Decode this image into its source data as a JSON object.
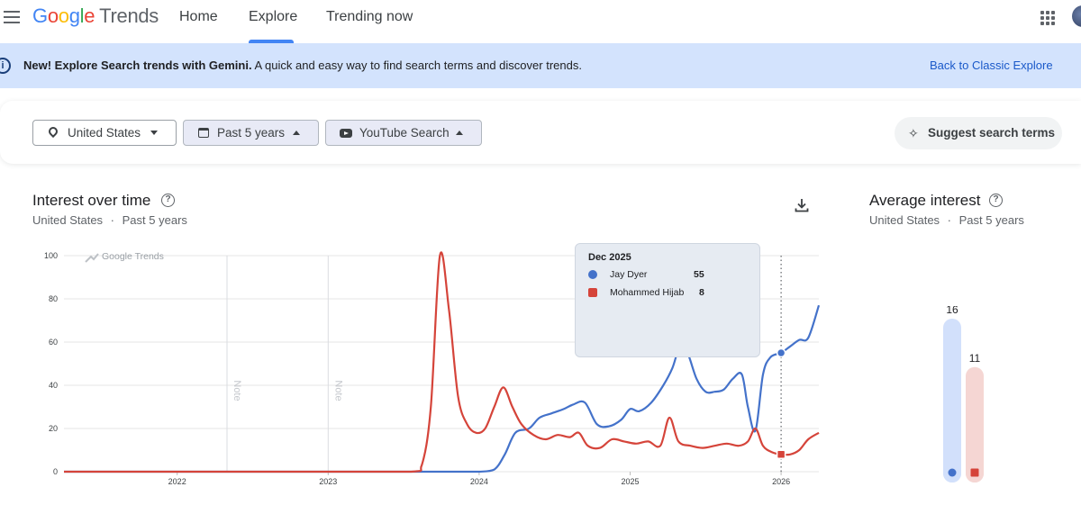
{
  "header": {
    "logo_letters": [
      "G",
      "o",
      "o",
      "g",
      "l",
      "e"
    ],
    "logo_suffix": "Trends",
    "nav": [
      {
        "label": "Home"
      },
      {
        "label": "Explore",
        "active": true
      },
      {
        "label": "Trending now"
      }
    ]
  },
  "banner": {
    "bold": "New! Explore Search trends with Gemini.",
    "text": "A quick and easy way to find search terms and discover trends.",
    "link": "Back to Classic Explore",
    "color": "#d3e3fd"
  },
  "filters": {
    "location": "United States",
    "time_range": "Past 5 years",
    "property": "YouTube Search",
    "suggest": "Suggest search terms"
  },
  "interest_over_time": {
    "title": "Interest over time",
    "location": "United States",
    "separator": "·",
    "time_range": "Past 5 years",
    "watermark": "Google Trends",
    "note_label": "Note"
  },
  "tooltip": {
    "date": "Dec 2025",
    "rows": [
      {
        "name": "Jay Dyer",
        "value": "55",
        "color": "#4472ca"
      },
      {
        "name": "Mohammed Hijab",
        "value": "8",
        "color": "#d5443a"
      }
    ]
  },
  "average_interest": {
    "title": "Average interest",
    "location": "United States",
    "separator": "·",
    "time_range": "Past 5 years",
    "bars": [
      {
        "name": "Jay Dyer",
        "value": 16,
        "label": "16",
        "color": "#4472ca",
        "track": "#d2e0fb"
      },
      {
        "name": "Mohammed Hijab",
        "value": 11,
        "label": "11",
        "color": "#d5443a",
        "track": "#f5d6d3"
      }
    ]
  },
  "chart_data": {
    "type": "line",
    "x_ticks": [
      "2022",
      "2023",
      "2024",
      "2025",
      "2026"
    ],
    "y_ticks": [
      "0",
      "20",
      "40",
      "60",
      "80",
      "100"
    ],
    "ylim": [
      0,
      100
    ],
    "xlim": [
      2021.25,
      2026.25
    ],
    "note_positions": [
      2022.33,
      2023.0
    ],
    "highlight_x": 2026.0,
    "series": [
      {
        "name": "Jay Dyer",
        "color": "#4472ca",
        "points": [
          [
            2021.25,
            0
          ],
          [
            2023.0,
            0
          ],
          [
            2023.6,
            0
          ],
          [
            2023.9,
            0
          ],
          [
            2024.0,
            0
          ],
          [
            2024.1,
            1
          ],
          [
            2024.17,
            8
          ],
          [
            2024.24,
            18
          ],
          [
            2024.33,
            20
          ],
          [
            2024.4,
            25
          ],
          [
            2024.48,
            27
          ],
          [
            2024.56,
            29
          ],
          [
            2024.62,
            31
          ],
          [
            2024.7,
            32
          ],
          [
            2024.78,
            22
          ],
          [
            2024.86,
            21
          ],
          [
            2024.94,
            24
          ],
          [
            2025.0,
            29
          ],
          [
            2025.06,
            28
          ],
          [
            2025.14,
            32
          ],
          [
            2025.22,
            40
          ],
          [
            2025.28,
            48
          ],
          [
            2025.33,
            58
          ],
          [
            2025.38,
            55
          ],
          [
            2025.44,
            43
          ],
          [
            2025.5,
            37
          ],
          [
            2025.56,
            37
          ],
          [
            2025.62,
            38
          ],
          [
            2025.68,
            43
          ],
          [
            2025.74,
            45
          ],
          [
            2025.78,
            30
          ],
          [
            2025.83,
            19
          ],
          [
            2025.88,
            45
          ],
          [
            2025.93,
            53
          ],
          [
            2026.0,
            55
          ],
          [
            2026.06,
            58
          ],
          [
            2026.12,
            61
          ],
          [
            2026.18,
            62
          ],
          [
            2026.25,
            77
          ]
        ]
      },
      {
        "name": "Mohammed Hijab",
        "color": "#d5443a",
        "points": [
          [
            2021.25,
            0
          ],
          [
            2023.0,
            0
          ],
          [
            2023.55,
            0
          ],
          [
            2023.62,
            3
          ],
          [
            2023.68,
            30
          ],
          [
            2023.74,
            100
          ],
          [
            2023.8,
            75
          ],
          [
            2023.86,
            35
          ],
          [
            2023.92,
            22
          ],
          [
            2023.98,
            18
          ],
          [
            2024.04,
            20
          ],
          [
            2024.1,
            30
          ],
          [
            2024.16,
            39
          ],
          [
            2024.22,
            30
          ],
          [
            2024.28,
            22
          ],
          [
            2024.36,
            17
          ],
          [
            2024.44,
            15
          ],
          [
            2024.52,
            17
          ],
          [
            2024.6,
            16
          ],
          [
            2024.66,
            18
          ],
          [
            2024.72,
            12
          ],
          [
            2024.8,
            11
          ],
          [
            2024.88,
            15
          ],
          [
            2024.96,
            14
          ],
          [
            2025.04,
            13
          ],
          [
            2025.12,
            14
          ],
          [
            2025.2,
            12
          ],
          [
            2025.26,
            25
          ],
          [
            2025.32,
            14
          ],
          [
            2025.4,
            12
          ],
          [
            2025.48,
            11
          ],
          [
            2025.56,
            12
          ],
          [
            2025.64,
            13
          ],
          [
            2025.72,
            12
          ],
          [
            2025.78,
            14
          ],
          [
            2025.83,
            20
          ],
          [
            2025.88,
            12
          ],
          [
            2025.94,
            9
          ],
          [
            2026.0,
            8
          ],
          [
            2026.06,
            8
          ],
          [
            2026.12,
            10
          ],
          [
            2026.18,
            15
          ],
          [
            2026.25,
            18
          ]
        ]
      }
    ]
  }
}
